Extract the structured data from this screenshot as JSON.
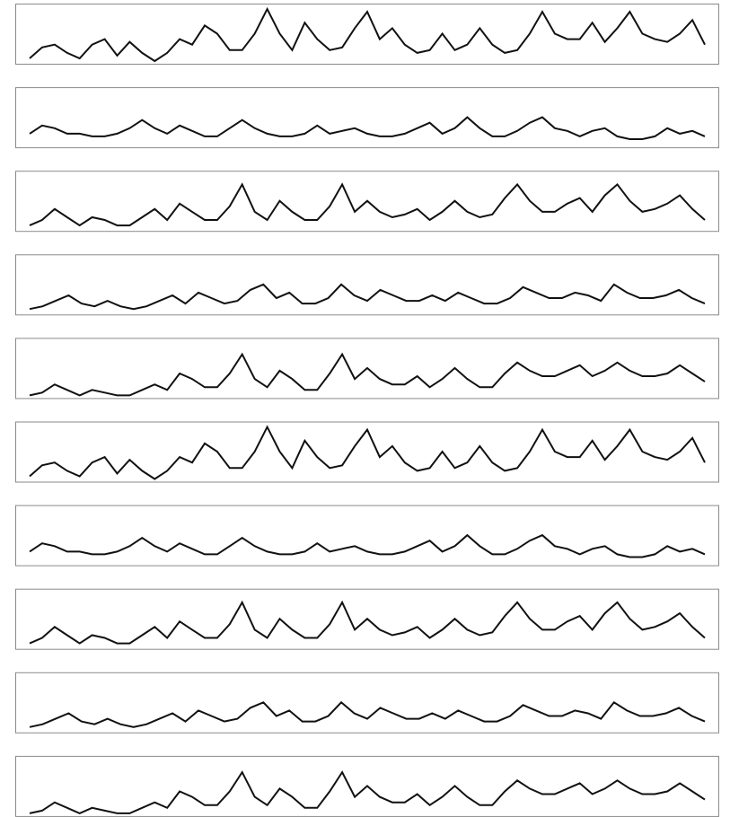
{
  "chart_data": [
    {
      "type": "line",
      "color": "#111111",
      "ylim": [
        0,
        10
      ],
      "values": [
        0.5,
        2.5,
        3,
        1.5,
        0.5,
        3,
        4,
        1,
        3.5,
        1.5,
        0,
        1.5,
        4,
        3,
        6.5,
        5,
        2,
        2,
        5,
        9.5,
        5,
        2,
        7,
        4,
        2,
        2.5,
        6,
        9,
        4,
        6,
        3,
        1.5,
        2,
        5,
        2,
        3,
        6,
        3,
        1.5,
        2,
        5,
        9,
        5,
        4,
        4,
        7,
        3.5,
        6,
        9,
        5,
        4,
        3.5,
        5,
        7.5,
        3
      ]
    },
    {
      "type": "line",
      "color": "#111111",
      "ylim": [
        0,
        10
      ],
      "values": [
        2,
        3.5,
        3,
        2,
        2,
        1.5,
        1.5,
        2,
        3,
        4.5,
        3,
        2,
        3.5,
        2.5,
        1.5,
        1.5,
        3,
        4.5,
        3,
        2,
        1.5,
        1.5,
        2,
        3.5,
        2,
        2.5,
        3,
        2,
        1.5,
        1.5,
        2,
        3,
        4,
        2,
        3,
        5,
        3,
        1.5,
        1.5,
        2.5,
        4,
        5,
        3,
        2.5,
        1.5,
        2.5,
        3,
        1.5,
        1,
        1,
        1.5,
        3,
        2,
        2.5,
        1.5
      ]
    },
    {
      "type": "line",
      "color": "#111111",
      "ylim": [
        0,
        10
      ],
      "values": [
        0.5,
        1.5,
        3.5,
        2,
        0.5,
        2,
        1.5,
        0.5,
        0.5,
        2,
        3.5,
        1.5,
        4.5,
        3,
        1.5,
        1.5,
        4,
        8,
        3,
        1.5,
        5,
        3,
        1.5,
        1.5,
        4,
        8,
        3,
        5,
        3,
        2,
        2.5,
        3.5,
        1.5,
        3,
        5,
        3,
        2,
        2.5,
        5.5,
        8,
        5,
        3,
        3,
        4.5,
        5.5,
        3,
        6,
        8,
        5,
        3,
        3.5,
        4.5,
        6,
        3.5,
        1.5
      ]
    },
    {
      "type": "line",
      "color": "#111111",
      "ylim": [
        0,
        10
      ],
      "values": [
        0.5,
        1,
        2,
        3,
        1.5,
        1,
        2,
        1,
        0.5,
        1,
        2,
        3,
        1.5,
        3.5,
        2.5,
        1.5,
        2,
        4,
        5,
        2.5,
        3.5,
        1.5,
        1.5,
        2.5,
        5,
        3,
        2,
        4,
        3,
        2,
        2,
        3,
        2,
        3.5,
        2.5,
        1.5,
        1.5,
        2.5,
        4.5,
        3.5,
        2.5,
        2.5,
        3.5,
        3,
        2,
        5,
        3.5,
        2.5,
        2.5,
        3,
        4,
        2.5,
        1.5
      ]
    },
    {
      "type": "line",
      "color": "#111111",
      "ylim": [
        0,
        10
      ],
      "values": [
        0,
        0.5,
        2,
        1,
        0,
        1,
        0.5,
        0,
        0,
        1,
        2,
        1,
        4,
        3,
        1.5,
        1.5,
        4,
        7.5,
        3,
        1.5,
        4.5,
        3,
        1,
        1,
        4,
        7.5,
        3,
        5,
        3,
        2,
        2,
        3.5,
        1.5,
        3,
        5,
        3,
        1.5,
        1.5,
        4,
        6,
        4.5,
        3.5,
        3.5,
        4.5,
        5.5,
        3.5,
        4.5,
        6,
        4.5,
        3.5,
        3.5,
        4,
        5.5,
        4,
        2.5
      ]
    },
    {
      "type": "line",
      "color": "#111111",
      "ylim": [
        0,
        10
      ],
      "values": [
        0.5,
        2.5,
        3,
        1.5,
        0.5,
        3,
        4,
        1,
        3.5,
        1.5,
        0,
        1.5,
        4,
        3,
        6.5,
        5,
        2,
        2,
        5,
        9.5,
        5,
        2,
        7,
        4,
        2,
        2.5,
        6,
        9,
        4,
        6,
        3,
        1.5,
        2,
        5,
        2,
        3,
        6,
        3,
        1.5,
        2,
        5,
        9,
        5,
        4,
        4,
        7,
        3.5,
        6,
        9,
        5,
        4,
        3.5,
        5,
        7.5,
        3
      ]
    },
    {
      "type": "line",
      "color": "#111111",
      "ylim": [
        0,
        10
      ],
      "values": [
        2,
        3.5,
        3,
        2,
        2,
        1.5,
        1.5,
        2,
        3,
        4.5,
        3,
        2,
        3.5,
        2.5,
        1.5,
        1.5,
        3,
        4.5,
        3,
        2,
        1.5,
        1.5,
        2,
        3.5,
        2,
        2.5,
        3,
        2,
        1.5,
        1.5,
        2,
        3,
        4,
        2,
        3,
        5,
        3,
        1.5,
        1.5,
        2.5,
        4,
        5,
        3,
        2.5,
        1.5,
        2.5,
        3,
        1.5,
        1,
        1,
        1.5,
        3,
        2,
        2.5,
        1.5
      ]
    },
    {
      "type": "line",
      "color": "#111111",
      "ylim": [
        0,
        10
      ],
      "values": [
        0.5,
        1.5,
        3.5,
        2,
        0.5,
        2,
        1.5,
        0.5,
        0.5,
        2,
        3.5,
        1.5,
        4.5,
        3,
        1.5,
        1.5,
        4,
        8,
        3,
        1.5,
        5,
        3,
        1.5,
        1.5,
        4,
        8,
        3,
        5,
        3,
        2,
        2.5,
        3.5,
        1.5,
        3,
        5,
        3,
        2,
        2.5,
        5.5,
        8,
        5,
        3,
        3,
        4.5,
        5.5,
        3,
        6,
        8,
        5,
        3,
        3.5,
        4.5,
        6,
        3.5,
        1.5
      ]
    },
    {
      "type": "line",
      "color": "#111111",
      "ylim": [
        0,
        10
      ],
      "values": [
        0.5,
        1,
        2,
        3,
        1.5,
        1,
        2,
        1,
        0.5,
        1,
        2,
        3,
        1.5,
        3.5,
        2.5,
        1.5,
        2,
        4,
        5,
        2.5,
        3.5,
        1.5,
        1.5,
        2.5,
        5,
        3,
        2,
        4,
        3,
        2,
        2,
        3,
        2,
        3.5,
        2.5,
        1.5,
        1.5,
        2.5,
        4.5,
        3.5,
        2.5,
        2.5,
        3.5,
        3,
        2,
        5,
        3.5,
        2.5,
        2.5,
        3,
        4,
        2.5,
        1.5
      ]
    },
    {
      "type": "line",
      "color": "#111111",
      "ylim": [
        0,
        10
      ],
      "values": [
        0,
        0.5,
        2,
        1,
        0,
        1,
        0.5,
        0,
        0,
        1,
        2,
        1,
        4,
        3,
        1.5,
        1.5,
        4,
        7.5,
        3,
        1.5,
        4.5,
        3,
        1,
        1,
        4,
        7.5,
        3,
        5,
        3,
        2,
        2,
        3.5,
        1.5,
        3,
        5,
        3,
        1.5,
        1.5,
        4,
        6,
        4.5,
        3.5,
        3.5,
        4.5,
        5.5,
        3.5,
        4.5,
        6,
        4.5,
        3.5,
        3.5,
        4,
        5.5,
        4,
        2.5
      ]
    }
  ]
}
